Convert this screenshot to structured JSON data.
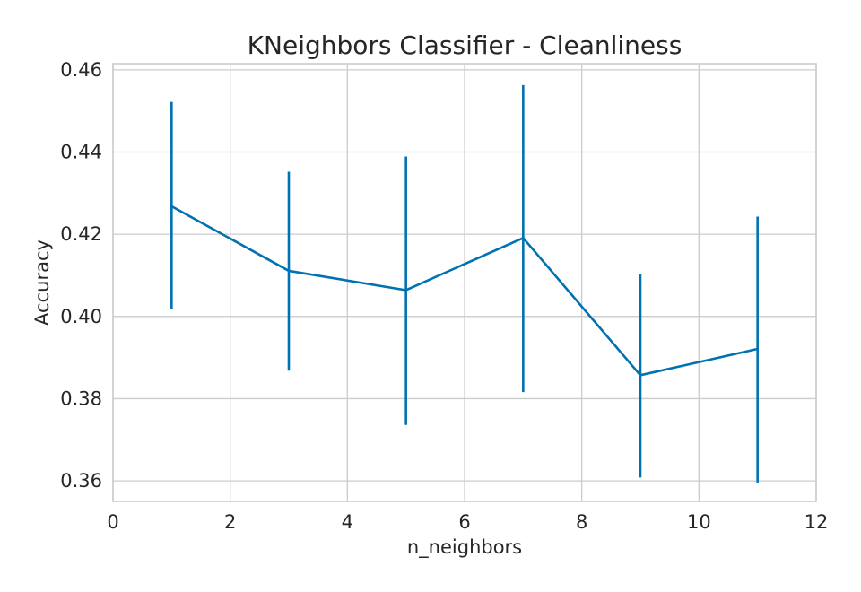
{
  "chart_data": {
    "type": "line",
    "title": "KNeighbors Classifier - Cleanliness",
    "xlabel": "n_neighbors",
    "ylabel": "Accuracy",
    "xlim": [
      0,
      12
    ],
    "ylim": [
      0.355,
      0.4615
    ],
    "xticks": [
      0,
      2,
      4,
      6,
      8,
      10,
      12
    ],
    "xtick_labels": [
      "0",
      "2",
      "4",
      "6",
      "8",
      "10",
      "12"
    ],
    "yticks": [
      0.36,
      0.38,
      0.4,
      0.42,
      0.44,
      0.46
    ],
    "ytick_labels": [
      "0.36",
      "0.38",
      "0.40",
      "0.42",
      "0.44",
      "0.46"
    ],
    "grid": true,
    "color": "#0072b2",
    "series": [
      {
        "x": [
          1,
          3,
          5,
          7,
          9,
          11
        ],
        "values": [
          0.4268,
          0.4111,
          0.4064,
          0.4191,
          0.3857,
          0.3921
        ],
        "error_low": [
          0.4017,
          0.3868,
          0.3736,
          0.3816,
          0.3608,
          0.3596
        ],
        "error_high": [
          0.4522,
          0.4352,
          0.4389,
          0.4563,
          0.4104,
          0.4243
        ]
      }
    ]
  }
}
